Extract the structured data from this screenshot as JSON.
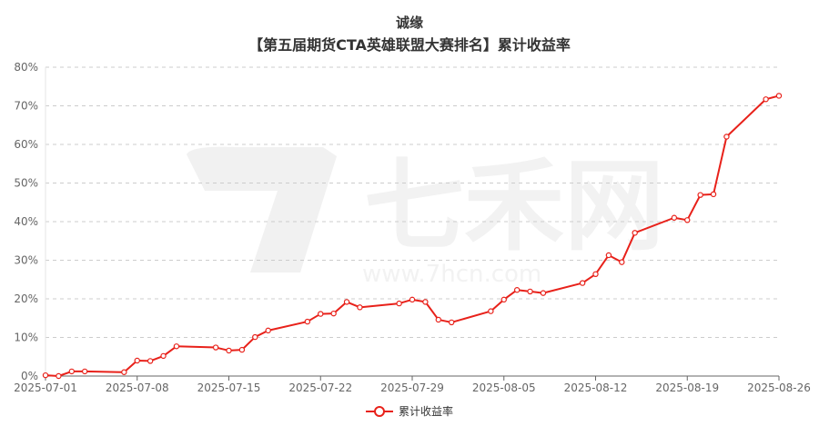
{
  "header": {
    "title_line1": "诚缘",
    "title_line2": "【第五届期货CTA英雄联盟大赛排名】累计收益率"
  },
  "watermark": {
    "brand": "七禾网",
    "url": "www.7hcn.com"
  },
  "colors": {
    "series": "#e8211a",
    "grid": "#cccccc",
    "axis": "#666666"
  },
  "chart_data": {
    "type": "line",
    "title": "【第五届期货CTA英雄联盟大赛排名】累计收益率",
    "subtitle": "诚缘",
    "xlabel": "",
    "ylabel": "",
    "ylim": [
      0,
      80
    ],
    "yticks": [
      "0%",
      "10%",
      "20%",
      "30%",
      "40%",
      "50%",
      "60%",
      "70%",
      "80%"
    ],
    "xticks": [
      "2025-07-01",
      "2025-07-08",
      "2025-07-15",
      "2025-07-22",
      "2025-07-29",
      "2025-08-05",
      "2025-08-12",
      "2025-08-19",
      "2025-08-26"
    ],
    "grid": true,
    "legend_position": "bottom-center",
    "series": [
      {
        "name": "累计收益率",
        "color": "#e8211a",
        "points": [
          [
            "2025-07-01",
            0.2
          ],
          [
            "2025-07-02",
            0.0
          ],
          [
            "2025-07-03",
            1.2
          ],
          [
            "2025-07-04",
            1.2
          ],
          [
            "2025-07-07",
            1.0
          ],
          [
            "2025-07-08",
            4.0
          ],
          [
            "2025-07-09",
            3.9
          ],
          [
            "2025-07-10",
            5.2
          ],
          [
            "2025-07-11",
            7.7
          ],
          [
            "2025-07-14",
            7.4
          ],
          [
            "2025-07-15",
            6.6
          ],
          [
            "2025-07-16",
            6.8
          ],
          [
            "2025-07-17",
            10.1
          ],
          [
            "2025-07-18",
            11.8
          ],
          [
            "2025-07-21",
            14.1
          ],
          [
            "2025-07-22",
            16.1
          ],
          [
            "2025-07-23",
            16.2
          ],
          [
            "2025-07-24",
            19.2
          ],
          [
            "2025-07-25",
            17.8
          ],
          [
            "2025-07-28",
            18.8
          ],
          [
            "2025-07-29",
            19.8
          ],
          [
            "2025-07-30",
            19.2
          ],
          [
            "2025-07-31",
            14.6
          ],
          [
            "2025-08-01",
            13.9
          ],
          [
            "2025-08-04",
            16.8
          ],
          [
            "2025-08-05",
            19.8
          ],
          [
            "2025-08-06",
            22.3
          ],
          [
            "2025-08-07",
            21.9
          ],
          [
            "2025-08-08",
            21.5
          ],
          [
            "2025-08-11",
            24.1
          ],
          [
            "2025-08-12",
            26.4
          ],
          [
            "2025-08-13",
            31.3
          ],
          [
            "2025-08-14",
            29.5
          ],
          [
            "2025-08-15",
            37.1
          ],
          [
            "2025-08-18",
            41.0
          ],
          [
            "2025-08-19",
            40.4
          ],
          [
            "2025-08-20",
            46.9
          ],
          [
            "2025-08-21",
            47.1
          ],
          [
            "2025-08-22",
            62.0
          ],
          [
            "2025-08-25",
            71.7
          ],
          [
            "2025-08-26",
            72.6
          ]
        ]
      }
    ]
  }
}
